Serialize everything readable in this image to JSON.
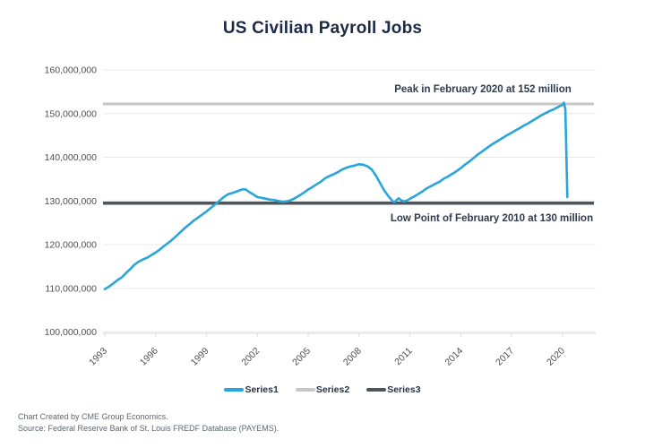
{
  "title": "US Civilian Payroll Jobs",
  "annotations": {
    "peak": "Peak in February 2020 at 152 million",
    "low": "Low Point of February 2010 at 130 million"
  },
  "legend": [
    {
      "label": "Series1",
      "color": "#29a5da"
    },
    {
      "label": "Series2",
      "color": "#c5c6c8"
    },
    {
      "label": "Series3",
      "color": "#4e565c"
    }
  ],
  "footer": {
    "line1": "Chart Created by CME Group Economics.",
    "line2": "Source: Federal Reserve Bank of St. Louis FREDF Database (PAYEMS)."
  },
  "chart_data": {
    "type": "line",
    "title": "US Civilian Payroll Jobs",
    "units": "jobs (values in millions)",
    "xlabel": "",
    "ylabel": "",
    "grid": "horizontal",
    "legend_position": "bottom",
    "ylim": [
      100,
      160
    ],
    "y_ticks": [
      {
        "value": 100,
        "label": "100,000,000"
      },
      {
        "value": 110,
        "label": "110,000,000"
      },
      {
        "value": 120,
        "label": "120,000,000"
      },
      {
        "value": 130,
        "label": "130,000,000"
      },
      {
        "value": 140,
        "label": "140,000,000"
      },
      {
        "value": 150,
        "label": "150,000,000"
      },
      {
        "value": 160,
        "label": "160,000,000"
      }
    ],
    "x_ticks": [
      1993,
      1996,
      1999,
      2002,
      2005,
      2008,
      2011,
      2014,
      2017,
      2020
    ],
    "colors": {
      "grid": "#e8e8e8",
      "axis": "#d9d9d9"
    },
    "series": [
      {
        "name": "Series1",
        "color": "#29a5da",
        "kind": "data",
        "points": [
          [
            1993.0,
            109.8
          ],
          [
            1993.25,
            110.4
          ],
          [
            1993.5,
            111.1
          ],
          [
            1993.75,
            111.9
          ],
          [
            1994.0,
            112.5
          ],
          [
            1994.25,
            113.5
          ],
          [
            1994.5,
            114.4
          ],
          [
            1994.75,
            115.4
          ],
          [
            1995.0,
            116.1
          ],
          [
            1995.25,
            116.6
          ],
          [
            1995.5,
            117.0
          ],
          [
            1995.75,
            117.6
          ],
          [
            1996.0,
            118.2
          ],
          [
            1996.25,
            118.9
          ],
          [
            1996.5,
            119.7
          ],
          [
            1996.75,
            120.4
          ],
          [
            1997.0,
            121.2
          ],
          [
            1997.25,
            122.1
          ],
          [
            1997.5,
            123.0
          ],
          [
            1997.75,
            123.9
          ],
          [
            1998.0,
            124.7
          ],
          [
            1998.25,
            125.5
          ],
          [
            1998.5,
            126.2
          ],
          [
            1998.75,
            126.9
          ],
          [
            1999.0,
            127.6
          ],
          [
            1999.25,
            128.4
          ],
          [
            1999.5,
            129.2
          ],
          [
            1999.75,
            130.0
          ],
          [
            2000.0,
            130.8
          ],
          [
            2000.25,
            131.5
          ],
          [
            2000.5,
            131.8
          ],
          [
            2000.75,
            132.1
          ],
          [
            2001.0,
            132.5
          ],
          [
            2001.17,
            132.7
          ],
          [
            2001.33,
            132.6
          ],
          [
            2001.5,
            132.1
          ],
          [
            2001.75,
            131.5
          ],
          [
            2002.0,
            130.9
          ],
          [
            2002.25,
            130.7
          ],
          [
            2002.5,
            130.5
          ],
          [
            2002.75,
            130.3
          ],
          [
            2003.0,
            130.2
          ],
          [
            2003.25,
            130.0
          ],
          [
            2003.5,
            129.8
          ],
          [
            2003.75,
            129.9
          ],
          [
            2004.0,
            130.2
          ],
          [
            2004.25,
            130.7
          ],
          [
            2004.5,
            131.3
          ],
          [
            2004.75,
            131.9
          ],
          [
            2005.0,
            132.6
          ],
          [
            2005.25,
            133.2
          ],
          [
            2005.5,
            133.8
          ],
          [
            2005.75,
            134.4
          ],
          [
            2006.0,
            135.2
          ],
          [
            2006.25,
            135.7
          ],
          [
            2006.5,
            136.1
          ],
          [
            2006.75,
            136.6
          ],
          [
            2007.0,
            137.2
          ],
          [
            2007.25,
            137.6
          ],
          [
            2007.5,
            137.9
          ],
          [
            2007.75,
            138.1
          ],
          [
            2008.0,
            138.4
          ],
          [
            2008.25,
            138.3
          ],
          [
            2008.5,
            137.9
          ],
          [
            2008.75,
            137.2
          ],
          [
            2009.0,
            135.8
          ],
          [
            2009.25,
            134.0
          ],
          [
            2009.5,
            132.3
          ],
          [
            2009.75,
            131.0
          ],
          [
            2010.0,
            129.9
          ],
          [
            2010.08,
            129.7
          ],
          [
            2010.33,
            130.6
          ],
          [
            2010.5,
            130.1
          ],
          [
            2010.67,
            129.9
          ],
          [
            2010.83,
            130.1
          ],
          [
            2011.0,
            130.5
          ],
          [
            2011.25,
            131.0
          ],
          [
            2011.5,
            131.6
          ],
          [
            2011.75,
            132.2
          ],
          [
            2012.0,
            132.9
          ],
          [
            2012.25,
            133.4
          ],
          [
            2012.5,
            133.9
          ],
          [
            2012.75,
            134.4
          ],
          [
            2013.0,
            135.1
          ],
          [
            2013.25,
            135.6
          ],
          [
            2013.5,
            136.2
          ],
          [
            2013.75,
            136.8
          ],
          [
            2014.0,
            137.5
          ],
          [
            2014.25,
            138.3
          ],
          [
            2014.5,
            139.0
          ],
          [
            2014.75,
            139.8
          ],
          [
            2015.0,
            140.6
          ],
          [
            2015.25,
            141.3
          ],
          [
            2015.5,
            142.0
          ],
          [
            2015.75,
            142.7
          ],
          [
            2016.0,
            143.3
          ],
          [
            2016.25,
            143.9
          ],
          [
            2016.5,
            144.5
          ],
          [
            2016.75,
            145.1
          ],
          [
            2017.0,
            145.6
          ],
          [
            2017.25,
            146.2
          ],
          [
            2017.5,
            146.7
          ],
          [
            2017.75,
            147.3
          ],
          [
            2018.0,
            147.8
          ],
          [
            2018.25,
            148.4
          ],
          [
            2018.5,
            149.0
          ],
          [
            2018.75,
            149.6
          ],
          [
            2019.0,
            150.1
          ],
          [
            2019.25,
            150.6
          ],
          [
            2019.5,
            151.0
          ],
          [
            2019.75,
            151.5
          ],
          [
            2020.0,
            152.0
          ],
          [
            2020.08,
            152.5
          ],
          [
            2020.17,
            151.0
          ],
          [
            2020.29,
            130.9
          ]
        ]
      },
      {
        "name": "Series2",
        "color": "#c5c6c8",
        "kind": "hline",
        "value": 152.2,
        "width": 3
      },
      {
        "name": "Series3",
        "color": "#4e565c",
        "kind": "hline",
        "value": 129.5,
        "width": 3.5
      }
    ]
  }
}
